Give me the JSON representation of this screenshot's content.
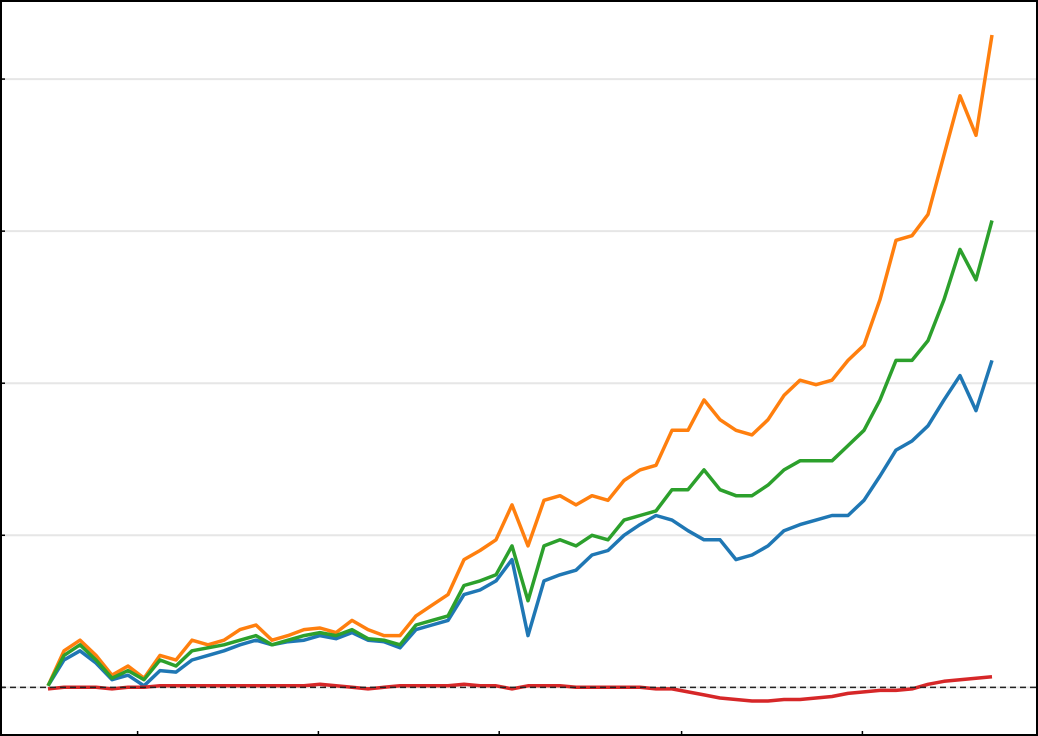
{
  "chart_data": {
    "type": "line",
    "xlim": [
      -3,
      61.875
    ],
    "xticks": [
      5.6,
      16.9,
      28.2,
      39.6,
      50.9
    ],
    "ylim": [
      -0.32,
      4.52
    ],
    "yticks": [
      0,
      1,
      2,
      3,
      4
    ],
    "grid": true,
    "hline": 0,
    "series": [
      {
        "color": "#1f77b4",
        "values": [
          0.01,
          0.18,
          0.24,
          0.16,
          0.05,
          0.08,
          0.01,
          0.11,
          0.1,
          0.18,
          0.21,
          0.24,
          0.28,
          0.31,
          0.28,
          0.3,
          0.31,
          0.34,
          0.32,
          0.36,
          0.31,
          0.3,
          0.26,
          0.38,
          0.41,
          0.44,
          0.61,
          0.64,
          0.7,
          0.84,
          0.34,
          0.7,
          0.74,
          0.77,
          0.87,
          0.9,
          1.0,
          1.07,
          1.13,
          1.1,
          1.03,
          0.97,
          0.97,
          0.84,
          0.87,
          0.93,
          1.03,
          1.07,
          1.1,
          1.13,
          1.13,
          1.23,
          1.39,
          1.56,
          1.62,
          1.72,
          1.89,
          2.05,
          1.82,
          2.15
        ]
      },
      {
        "color": "#ff7f0e",
        "values": [
          0.01,
          0.24,
          0.31,
          0.21,
          0.08,
          0.14,
          0.06,
          0.21,
          0.18,
          0.31,
          0.28,
          0.31,
          0.38,
          0.41,
          0.31,
          0.34,
          0.38,
          0.39,
          0.36,
          0.44,
          0.38,
          0.34,
          0.34,
          0.47,
          0.54,
          0.61,
          0.84,
          0.9,
          0.97,
          1.2,
          0.93,
          1.23,
          1.26,
          1.2,
          1.26,
          1.23,
          1.36,
          1.43,
          1.46,
          1.69,
          1.69,
          1.89,
          1.76,
          1.69,
          1.66,
          1.76,
          1.92,
          2.02,
          1.99,
          2.02,
          2.15,
          2.25,
          2.55,
          2.94,
          2.97,
          3.11,
          3.5,
          3.89,
          3.63,
          4.29
        ]
      },
      {
        "color": "#2ca02c",
        "values": [
          0.01,
          0.21,
          0.28,
          0.18,
          0.06,
          0.11,
          0.05,
          0.18,
          0.14,
          0.24,
          0.26,
          0.28,
          0.31,
          0.34,
          0.28,
          0.31,
          0.34,
          0.36,
          0.34,
          0.38,
          0.32,
          0.31,
          0.28,
          0.41,
          0.44,
          0.47,
          0.67,
          0.7,
          0.74,
          0.93,
          0.57,
          0.93,
          0.97,
          0.93,
          1.0,
          0.97,
          1.1,
          1.13,
          1.16,
          1.3,
          1.3,
          1.43,
          1.3,
          1.26,
          1.26,
          1.33,
          1.43,
          1.49,
          1.49,
          1.49,
          1.59,
          1.69,
          1.89,
          2.15,
          2.15,
          2.28,
          2.55,
          2.88,
          2.68,
          3.07
        ]
      },
      {
        "color": "#d62728",
        "values": [
          -0.01,
          0.0,
          0.0,
          0.0,
          -0.01,
          0.0,
          0.0,
          0.01,
          0.01,
          0.01,
          0.01,
          0.01,
          0.01,
          0.01,
          0.01,
          0.01,
          0.01,
          0.02,
          0.01,
          0.0,
          -0.01,
          0.0,
          0.01,
          0.01,
          0.01,
          0.01,
          0.02,
          0.01,
          0.01,
          -0.01,
          0.01,
          0.01,
          0.01,
          0.0,
          0.0,
          0.0,
          0.0,
          0.0,
          -0.01,
          -0.01,
          -0.03,
          -0.05,
          -0.07,
          -0.08,
          -0.09,
          -0.09,
          -0.08,
          -0.08,
          -0.07,
          -0.06,
          -0.04,
          -0.03,
          -0.02,
          -0.02,
          -0.01,
          0.02,
          0.04,
          0.05,
          0.06,
          0.07
        ]
      }
    ]
  }
}
